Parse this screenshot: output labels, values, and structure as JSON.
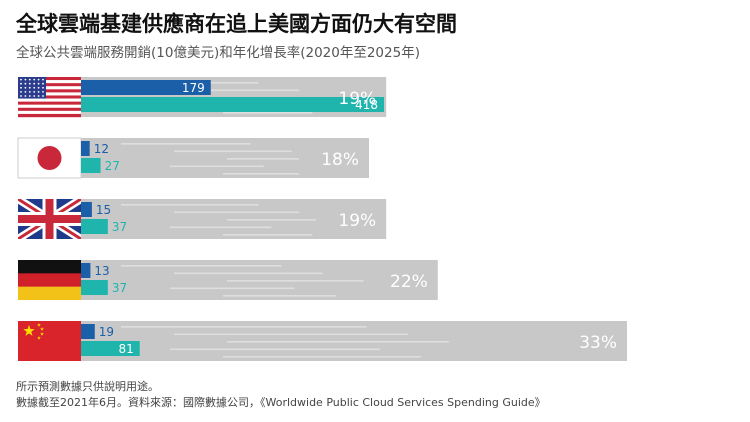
{
  "title": "全球雲端基建供應商在追上美國方面仍大有空間",
  "subtitle": "全球公共雲端服務開銷(10億美元)和年化增長率(2020年至2025年)",
  "chart_data": {
    "type": "bar",
    "title": "全球雲端基建供應商在追上美國方面仍大有空間",
    "subtitle": "全球公共雲端服務開銷(10億美元)和年化增長率(2020年至2025年)",
    "categories": [
      "美國",
      "日本",
      "英國",
      "德國",
      "中國"
    ],
    "series": [
      {
        "values": [
          179,
          12,
          15,
          13,
          19
        ]
      },
      {
        "values": [
          418,
          27,
          37,
          37,
          81
        ]
      }
    ],
    "growth_labels": [
      "19%",
      "18%",
      "19%",
      "22%",
      "33%"
    ],
    "growth_values": [
      19,
      18,
      19,
      22,
      33
    ]
  },
  "colors": {
    "series_2020": "#1b5fa8",
    "series_2025": "#1fb5ad",
    "growth_bar": "#c8c8c8",
    "growth_text": "#ffffff"
  },
  "flags": [
    "us-flag-icon",
    "japan-flag-icon",
    "uk-flag-icon",
    "germany-flag-icon",
    "china-flag-icon"
  ],
  "footer": {
    "note1": "所示預測數據只供說明用途。",
    "note2": "數據截至2021年6月。資料來源：國際數據公司，《Worldwide Public Cloud Services Spending Guide》"
  }
}
